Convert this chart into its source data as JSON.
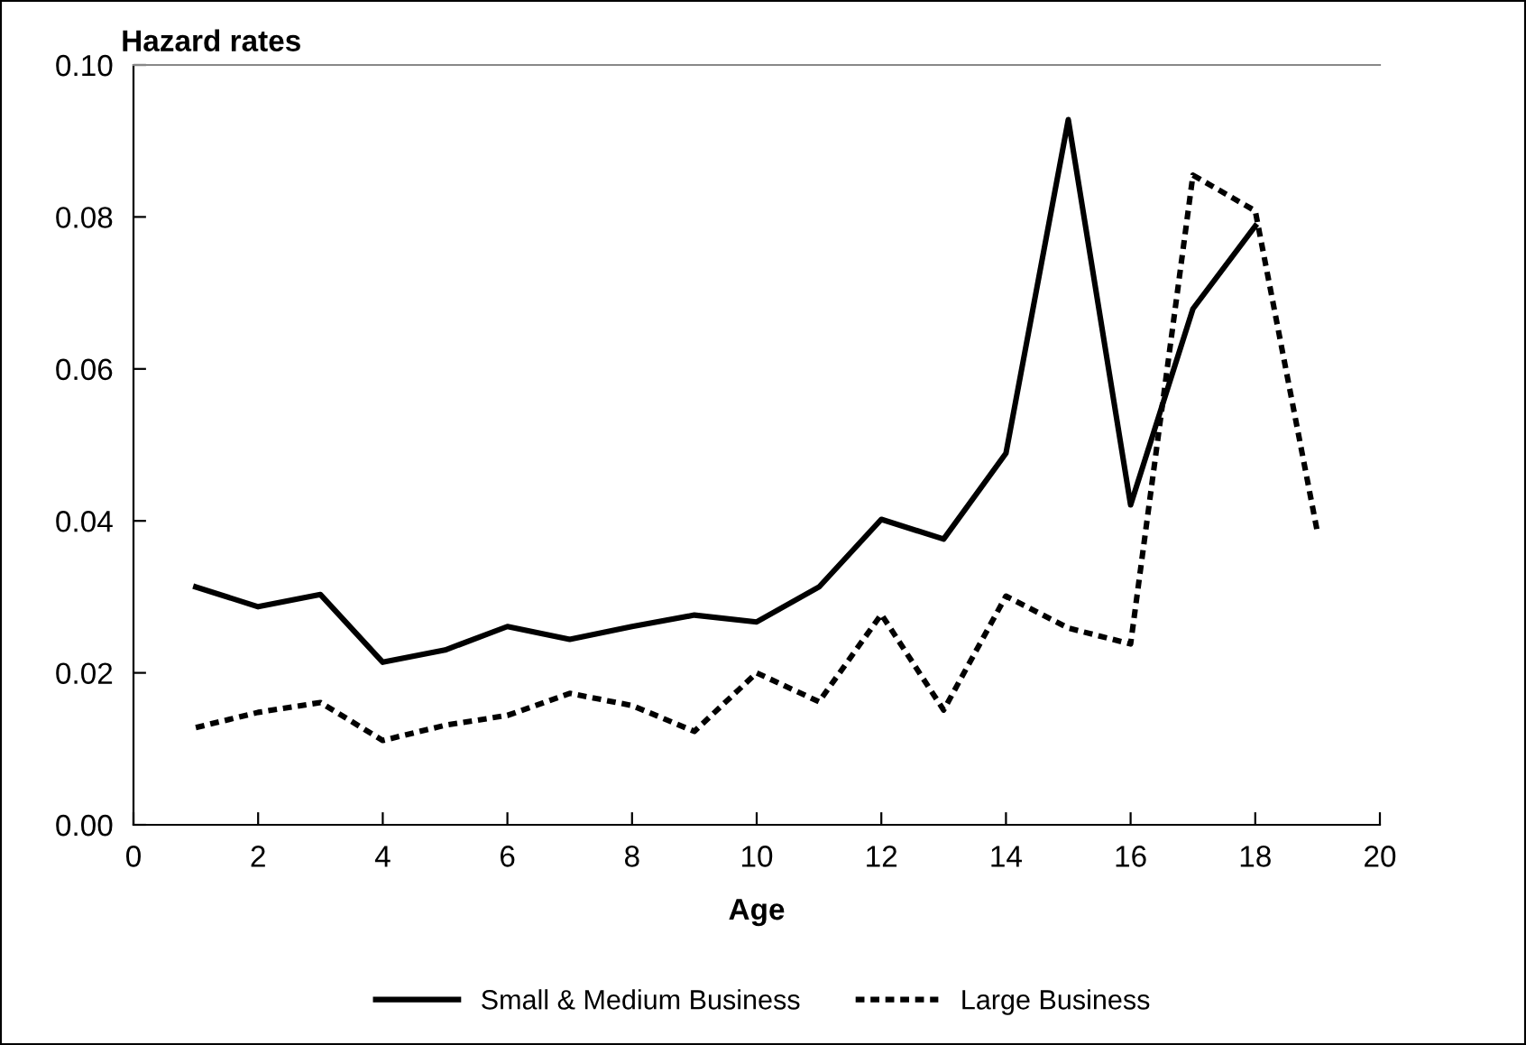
{
  "chart_data": {
    "type": "line",
    "ylabel": "Hazard rates",
    "xlabel": "Age",
    "x": [
      1,
      2,
      3,
      4,
      5,
      6,
      7,
      8,
      9,
      10,
      11,
      12,
      13,
      14,
      15,
      16,
      17,
      18,
      19
    ],
    "series": [
      {
        "name": "Small & Medium Business",
        "color": "#000000",
        "line_style": "solid",
        "values": [
          0.0313,
          0.0287,
          0.0303,
          0.0214,
          0.023,
          0.0261,
          0.0244,
          0.0261,
          0.0276,
          0.0267,
          0.0313,
          0.0402,
          0.0376,
          0.0489,
          0.0928,
          0.0421,
          0.0679,
          0.0788,
          null
        ]
      },
      {
        "name": "Large Business",
        "color": "#000000",
        "line_style": "dashed",
        "values": [
          0.0128,
          0.0148,
          0.0161,
          0.0111,
          0.0131,
          0.0144,
          0.0173,
          0.0157,
          0.0123,
          0.02,
          0.0162,
          0.0277,
          0.0151,
          0.0301,
          0.0259,
          0.0238,
          0.0855,
          0.0808,
          0.0384
        ]
      }
    ],
    "xlim": [
      0,
      20
    ],
    "xticks": [
      0,
      2,
      4,
      6,
      8,
      10,
      12,
      14,
      16,
      18,
      20
    ],
    "ylim": [
      0,
      0.1
    ],
    "yticks": [
      {
        "value": 0,
        "label": "0.00"
      },
      {
        "value": 0.02,
        "label": "0.02"
      },
      {
        "value": 0.04,
        "label": "0.04"
      },
      {
        "value": 0.06,
        "label": "0.06"
      },
      {
        "value": 0.08,
        "label": "0.08"
      },
      {
        "value": 0.1,
        "label": "0.10"
      }
    ],
    "grid": false,
    "legend": "bottom",
    "marker": "none"
  }
}
